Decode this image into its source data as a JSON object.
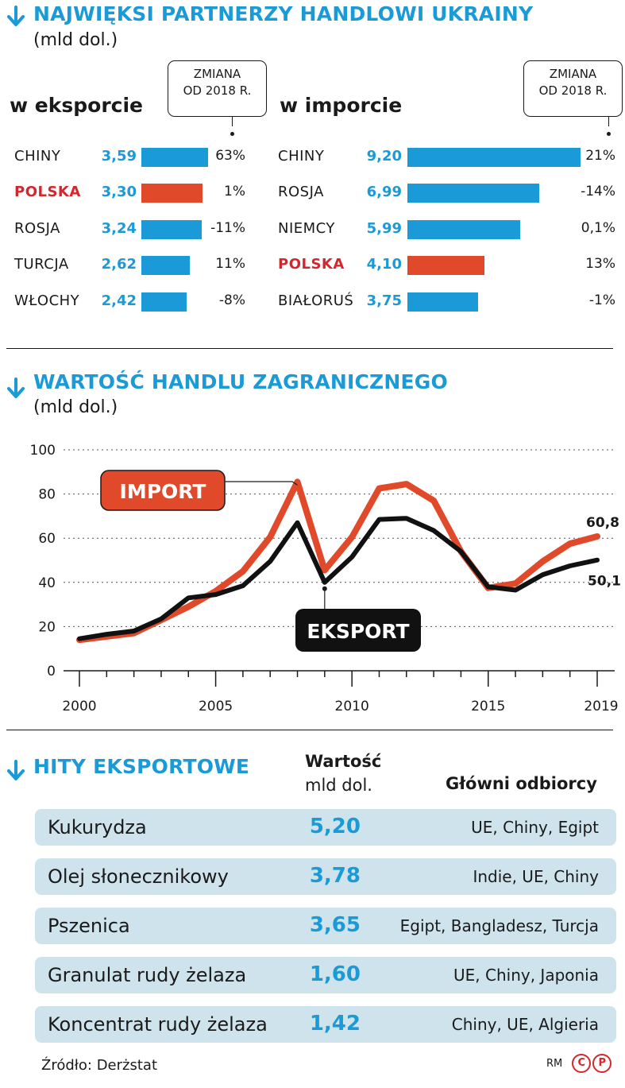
{
  "section1": {
    "title": "NAJWIĘKSI PARTNERZY HANDLOWI UKRAINY",
    "unit": "(mld dol.)",
    "export": {
      "heading": "w eksporcie",
      "callout": [
        "ZMIANA",
        "OD 2018 R."
      ],
      "rows": [
        {
          "name": "CHINY",
          "value": "3,59",
          "num": 3.59,
          "change": "63%",
          "highlight": false
        },
        {
          "name": "POLSKA",
          "value": "3,30",
          "num": 3.3,
          "change": "1%",
          "highlight": true
        },
        {
          "name": "ROSJA",
          "value": "3,24",
          "num": 3.24,
          "change": "-11%",
          "highlight": false
        },
        {
          "name": "TURCJA",
          "value": "2,62",
          "num": 2.62,
          "change": "11%",
          "highlight": false
        },
        {
          "name": "WŁOCHY",
          "value": "2,42",
          "num": 2.42,
          "change": "-8%",
          "highlight": false
        }
      ]
    },
    "import": {
      "heading": "w imporcie",
      "callout": [
        "ZMIANA",
        "OD 2018 R."
      ],
      "rows": [
        {
          "name": "CHINY",
          "value": "9,20",
          "num": 9.2,
          "change": "21%",
          "highlight": false
        },
        {
          "name": "ROSJA",
          "value": "6,99",
          "num": 6.99,
          "change": "-14%",
          "highlight": false
        },
        {
          "name": "NIEMCY",
          "value": "5,99",
          "num": 5.99,
          "change": "0,1%",
          "highlight": false
        },
        {
          "name": "POLSKA",
          "value": "4,10",
          "num": 4.1,
          "change": "13%",
          "highlight": true
        },
        {
          "name": "BIAŁORUŚ",
          "value": "3,75",
          "num": 3.75,
          "change": "-1%",
          "highlight": false
        }
      ]
    }
  },
  "section2": {
    "title": "WARTOŚĆ HANDLU ZAGRANICZNEGO",
    "unit": "(mld dol.)"
  },
  "chart_data": {
    "type": "line",
    "x": [
      2000,
      2001,
      2002,
      2003,
      2004,
      2005,
      2006,
      2007,
      2008,
      2009,
      2010,
      2011,
      2012,
      2013,
      2014,
      2015,
      2016,
      2017,
      2018,
      2019
    ],
    "ylim": [
      0,
      100
    ],
    "yticks": [
      "0",
      "20",
      "40",
      "60",
      "80",
      "100"
    ],
    "xticks": [
      "2000",
      "2005",
      "2010",
      "2015",
      "2019"
    ],
    "grid": true,
    "series": [
      {
        "name": "IMPORT",
        "color": "#e04a2a",
        "values": [
          14,
          15.5,
          17,
          23,
          29,
          36,
          45,
          60.5,
          85.5,
          45.5,
          60.5,
          82.5,
          84.5,
          77,
          54,
          37.5,
          39.5,
          49.5,
          57.5,
          60.8
        ],
        "end_label": "60,8"
      },
      {
        "name": "EKSPORT",
        "color": "#111111",
        "values": [
          14.5,
          16.5,
          18,
          23.5,
          33,
          34.5,
          38.5,
          49.5,
          67,
          40,
          51.5,
          68.5,
          69,
          63.5,
          54,
          38,
          36.5,
          43.5,
          47.5,
          50.1
        ],
        "end_label": "50,1"
      }
    ]
  },
  "section3": {
    "title": "HITY EKSPORTOWE",
    "col_value": [
      "Wartość",
      "mld dol."
    ],
    "col_recipients": "Główni odbiorcy",
    "rows": [
      {
        "product": "Kukurydza",
        "value": "5,20",
        "recipients": "UE, Chiny, Egipt"
      },
      {
        "product": "Olej słonecznikowy",
        "value": "3,78",
        "recipients": "Indie, UE, Chiny"
      },
      {
        "product": "Pszenica",
        "value": "3,65",
        "recipients": "Egipt, Bangladesz, Turcja"
      },
      {
        "product": "Granulat rudy żelaza",
        "value": "1,60",
        "recipients": "UE, Chiny, Japonia"
      },
      {
        "product": "Koncentrat rudy żelaza",
        "value": "1,42",
        "recipients": "Chiny, UE, Algieria"
      }
    ]
  },
  "footer": {
    "source": "Źródło: Derżstat",
    "author": "RM",
    "logo_c": "C",
    "logo_p": "P"
  },
  "colors": {
    "accent_blue": "#1a9ad6",
    "accent_red": "#e04a2a",
    "highlight_text": "#d7262b",
    "row_bg": "#cfe3ec"
  }
}
